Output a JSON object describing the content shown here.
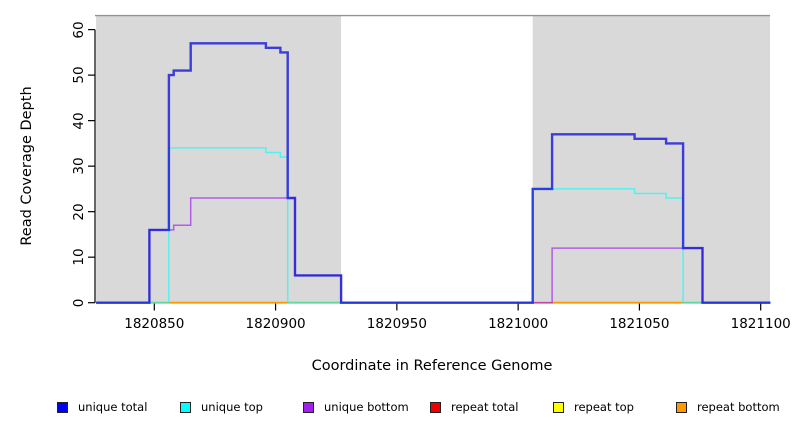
{
  "chart_data": {
    "type": "line",
    "subtype": "step-coverage",
    "title": "",
    "xlabel": "Coordinate in Reference Genome",
    "ylabel": "Read Coverage Depth",
    "xlim": [
      1820826,
      1821104
    ],
    "ylim": [
      0,
      63
    ],
    "x_ticks": [
      1820850,
      1820900,
      1820950,
      1821000,
      1821050,
      1821100
    ],
    "y_ticks": [
      0,
      10,
      20,
      30,
      40,
      50,
      60
    ],
    "grid": false,
    "legend_position": "bottom",
    "shade_color": "#d9d9d9",
    "shaded_regions": [
      {
        "from": 1820826,
        "to": 1820927
      },
      {
        "from": 1821006,
        "to": 1821104
      }
    ],
    "series": [
      {
        "name": "repeat total",
        "color": "#dd0000",
        "points": [
          [
            1820826,
            0
          ]
        ]
      },
      {
        "name": "repeat top",
        "color": "#ffff00",
        "points": [
          [
            1820826,
            0
          ]
        ]
      },
      {
        "name": "repeat bottom",
        "color": "#ff9900",
        "points": [
          [
            1820826,
            0
          ]
        ]
      },
      {
        "name": "unique bottom",
        "color": "#a020f0",
        "points": [
          [
            1820826,
            0
          ],
          [
            1820848,
            16
          ],
          [
            1820858,
            17
          ],
          [
            1820865,
            23
          ],
          [
            1820908,
            6
          ],
          [
            1820927,
            0
          ],
          [
            1821014,
            12
          ],
          [
            1821076,
            0
          ]
        ]
      },
      {
        "name": "unique top",
        "color": "#00ffff",
        "points": [
          [
            1820826,
            0
          ],
          [
            1820856,
            34
          ],
          [
            1820896,
            33
          ],
          [
            1820902,
            32
          ],
          [
            1820905,
            0
          ],
          [
            1821006,
            25
          ],
          [
            1821048,
            24
          ],
          [
            1821061,
            23
          ],
          [
            1821068,
            0
          ]
        ]
      },
      {
        "name": "unique total",
        "color": "#1a1add",
        "points": [
          [
            1820826,
            0
          ],
          [
            1820848,
            16
          ],
          [
            1820856,
            50
          ],
          [
            1820858,
            51
          ],
          [
            1820865,
            57
          ],
          [
            1820896,
            56
          ],
          [
            1820902,
            55
          ],
          [
            1820905,
            23
          ],
          [
            1820908,
            6
          ],
          [
            1820927,
            0
          ],
          [
            1821006,
            25
          ],
          [
            1821014,
            37
          ],
          [
            1821048,
            36
          ],
          [
            1821061,
            35
          ],
          [
            1821068,
            12
          ],
          [
            1821076,
            0
          ]
        ]
      }
    ]
  },
  "legend": {
    "items": [
      {
        "label": "unique total",
        "color": "#0000ee"
      },
      {
        "label": "unique top",
        "color": "#00ffff"
      },
      {
        "label": "unique bottom",
        "color": "#a020f0"
      },
      {
        "label": "repeat total",
        "color": "#ee0000"
      },
      {
        "label": "repeat top",
        "color": "#ffff00"
      },
      {
        "label": "repeat bottom",
        "color": "#ff9900"
      }
    ]
  }
}
